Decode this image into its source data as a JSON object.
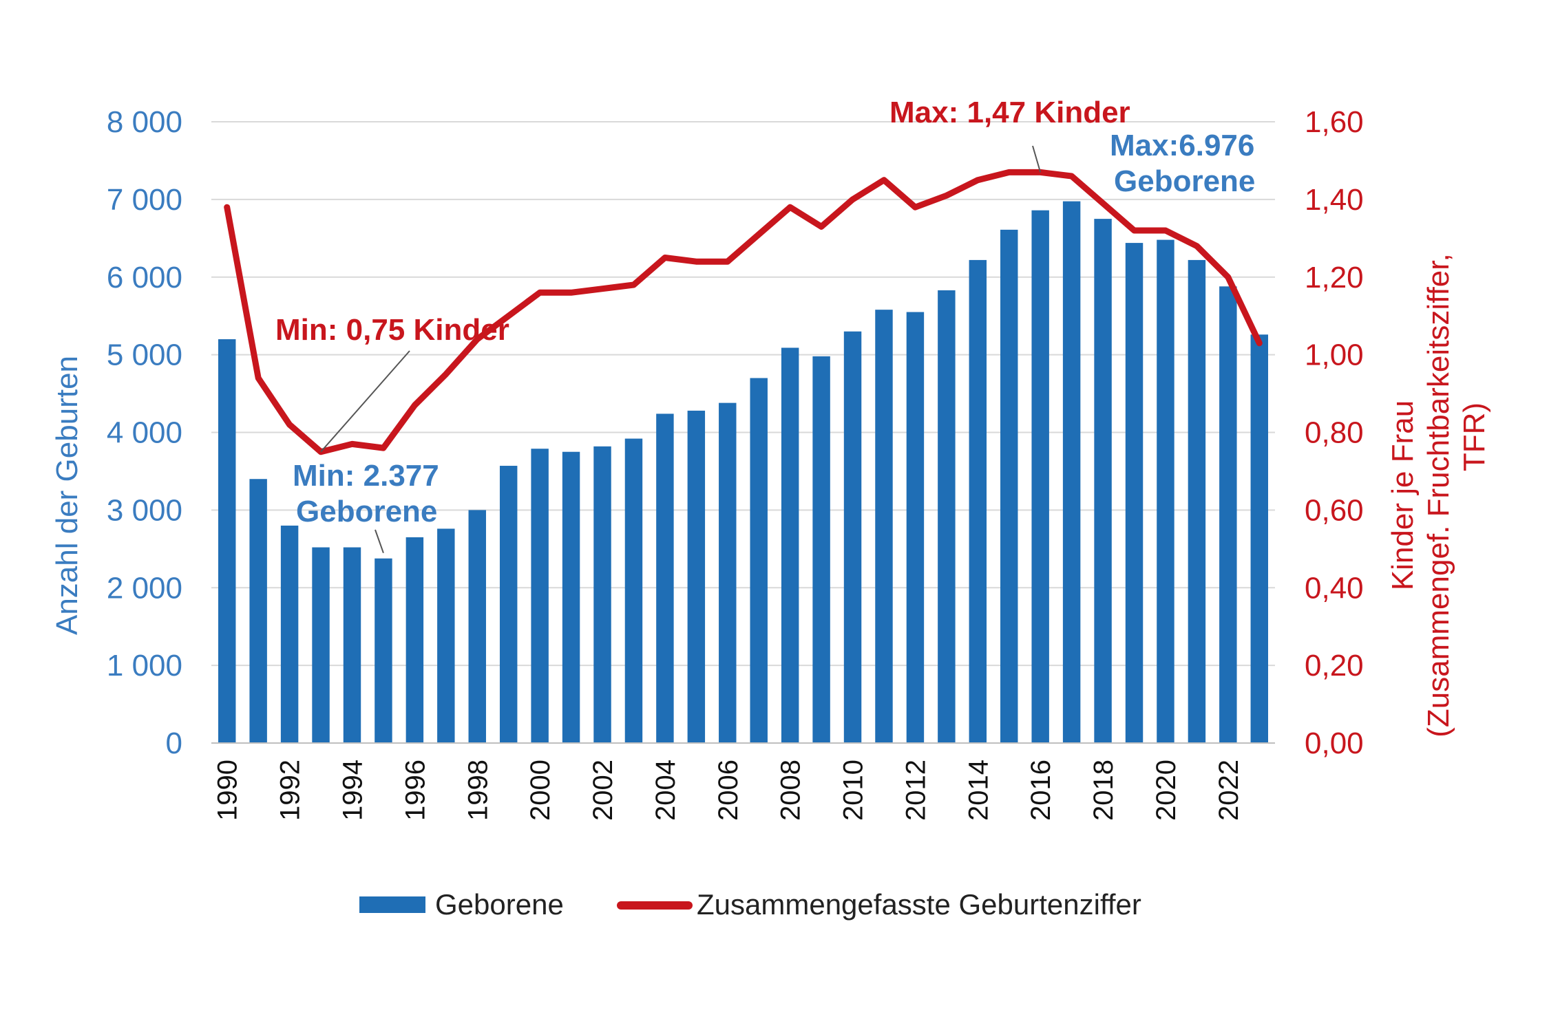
{
  "colors": {
    "bars": "#1f6eb5",
    "line": "#c8161d",
    "left_axis": "#3a7cc0",
    "right_axis": "#c8161d",
    "grid": "#d9d9d9"
  },
  "chart_data": {
    "type": "bar",
    "categories": [
      "1990",
      "1991",
      "1992",
      "1993",
      "1994",
      "1995",
      "1996",
      "1997",
      "1998",
      "1999",
      "2000",
      "2001",
      "2002",
      "2003",
      "2004",
      "2005",
      "2006",
      "2007",
      "2008",
      "2009",
      "2010",
      "2011",
      "2012",
      "2013",
      "2014",
      "2015",
      "2016",
      "2017",
      "2018",
      "2019",
      "2020",
      "2021",
      "2022",
      "2023"
    ],
    "x_tick_labels": [
      "1990",
      "1992",
      "1994",
      "1996",
      "1998",
      "2000",
      "2002",
      "2004",
      "2006",
      "2008",
      "2010",
      "2012",
      "2014",
      "2016",
      "2018",
      "2020",
      "2022"
    ],
    "series": [
      {
        "name": "Geborene",
        "type": "bar",
        "axis": "left",
        "values": [
          5200,
          3400,
          2800,
          2520,
          2520,
          2377,
          2650,
          2760,
          3000,
          3570,
          3790,
          3750,
          3820,
          3920,
          4240,
          4280,
          4380,
          4700,
          5090,
          4980,
          5300,
          5580,
          5550,
          5830,
          6220,
          6610,
          6860,
          6976,
          6750,
          6440,
          6480,
          6220,
          5880,
          5260
        ]
      },
      {
        "name": "Zusammengefasste Geburtenziffer",
        "type": "line",
        "axis": "right",
        "values": [
          1.38,
          0.94,
          0.82,
          0.75,
          0.77,
          0.76,
          0.87,
          0.95,
          1.04,
          1.1,
          1.16,
          1.16,
          1.17,
          1.18,
          1.25,
          1.24,
          1.24,
          1.31,
          1.38,
          1.33,
          1.4,
          1.45,
          1.38,
          1.41,
          1.45,
          1.47,
          1.47,
          1.46,
          1.39,
          1.32,
          1.32,
          1.28,
          1.2,
          1.03
        ]
      }
    ],
    "y_left": {
      "label": "Anzahl der Geburten",
      "range": [
        0,
        8000
      ],
      "ticks": [
        0,
        1000,
        2000,
        3000,
        4000,
        5000,
        6000,
        7000,
        8000
      ],
      "tick_labels": [
        "0",
        "1 000",
        "2 000",
        "3 000",
        "4 000",
        "5 000",
        "6 000",
        "7 000",
        "8 000"
      ]
    },
    "y_right": {
      "label_line1": "Kinder je Frau",
      "label_line2": "(Zusammengef.  Fruchtbarkeitsziffer,",
      "label_line3": "TFR)",
      "range": [
        0,
        1.6
      ],
      "ticks": [
        0,
        0.2,
        0.4,
        0.6,
        0.8,
        1.0,
        1.2,
        1.4,
        1.6
      ],
      "tick_labels": [
        "0,00",
        "0,20",
        "0,40",
        "0,60",
        "0,80",
        "1,00",
        "1,20",
        "1,40",
        "1,60"
      ]
    },
    "grid": true,
    "legend_position": "bottom",
    "annotations": {
      "min_tfr": {
        "text": "Min: 0,75 Kinder",
        "year": "1993",
        "value": 0.75
      },
      "max_tfr": {
        "text": "Max: 1,47 Kinder",
        "year": "2016",
        "value": 1.47
      },
      "min_births": {
        "line1": "Min: 2.377",
        "line2": "Geborene",
        "year": "1995",
        "value": 2377
      },
      "max_births": {
        "line1": "Max:6.976",
        "line2": "Geborene",
        "year": "2017",
        "value": 6976
      }
    }
  }
}
